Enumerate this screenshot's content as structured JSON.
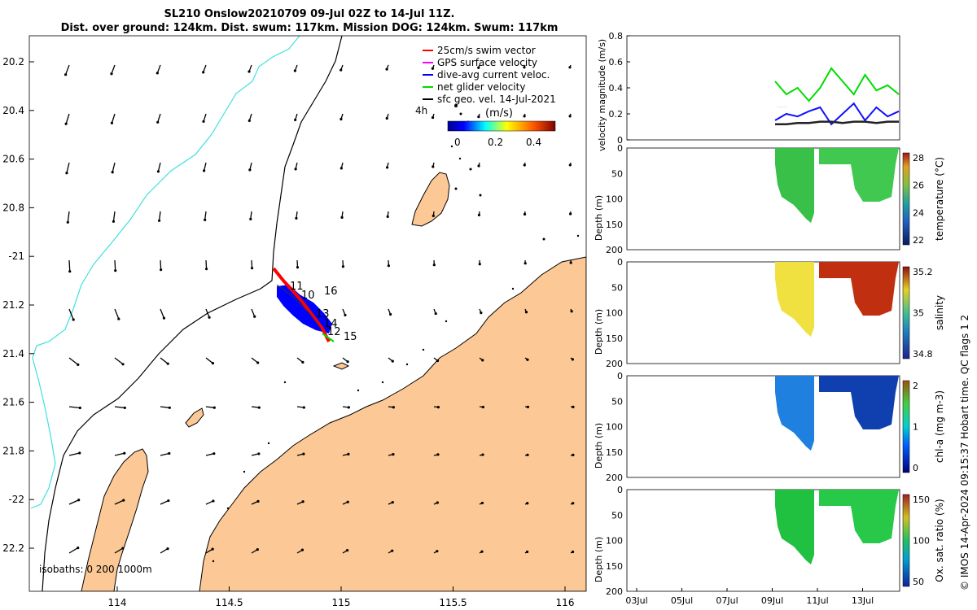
{
  "header": {
    "title_line1": "SL210 Onslow20210709 09-Jul 02Z to 14-Jul 11Z.",
    "title_line2": "Dist. over ground: 124km. Dist. swum: 117km. Mission DOG: 124km. Swum: 117km"
  },
  "map": {
    "legend": [
      {
        "label": "25cm/s swim vector",
        "color": "#ff0000"
      },
      {
        "label": "GPS surface velocity",
        "color": "#ff00ff"
      },
      {
        "label": "dive-avg current veloc.",
        "color": "#0000ff"
      },
      {
        "label": "net glider velocity",
        "color": "#00dd00"
      },
      {
        "label": "sfc geo. vel. 14-Jul-2021",
        "color": "#000000"
      }
    ],
    "label_4h": "4h",
    "colorbar_unit": "(m/s)",
    "colorbar_ticks": [
      "0",
      "0.2",
      "0.4"
    ],
    "isobaths_label": "isobaths: 0   200  1000m",
    "lat_ticks": [
      "20.2",
      "20.4",
      "20.6",
      "20.8",
      "-21",
      "21.2",
      "21.4",
      "21.6",
      "21.8",
      "-22",
      "22.2"
    ],
    "lon_ticks": [
      "114",
      "114.5",
      "115",
      "115.5",
      "116"
    ],
    "day_labels": [
      "11",
      "10",
      "16",
      "13",
      "14",
      "12",
      "15"
    ],
    "colors": {
      "land": "#fbc896",
      "isobath_200": "#000000",
      "isobath_1000": "#40e0e0"
    }
  },
  "panels": {
    "time_ticks": [
      "03Jul",
      "05Jul",
      "07Jul",
      "09Jul",
      "11Jul",
      "13Jul"
    ],
    "velocity": {
      "ylabel": "velocity magnitude (m/s)",
      "yticks": [
        "0",
        "0.2",
        "0.4",
        "0.6",
        "0.8"
      ]
    },
    "sections": [
      {
        "name": "temperature",
        "ylabel": "Depth (m)",
        "cbar_label": "temperature (°C)",
        "cbar_ticks": [
          "22",
          "24",
          "26",
          "28"
        ]
      },
      {
        "name": "salinity",
        "ylabel": "Depth (m)",
        "cbar_label": "salinity",
        "cbar_ticks": [
          "34.8",
          "35",
          "35.2"
        ]
      },
      {
        "name": "chla",
        "ylabel": "Depth (m)",
        "cbar_label": "chl-a (mg m-3)",
        "cbar_ticks": [
          "0",
          "1",
          "2"
        ]
      },
      {
        "name": "oxygen",
        "ylabel": "Depth (m)",
        "cbar_label": "Ox. sat. ratio (%)",
        "cbar_ticks": [
          "50",
          "100",
          "150"
        ]
      }
    ],
    "depth_ticks": [
      "0",
      "50",
      "100",
      "150",
      "200"
    ]
  },
  "footer_side": "© IMOS 14-Apr-2024 09:15:37 Hobart time. QC flags 1  2",
  "chart_data": {
    "type": "line",
    "title": "SL210 Onslow20210709 09-Jul 02Z to 14-Jul 11Z.",
    "xlabel": "",
    "ylabel": "velocity magnitude (m/s)",
    "ylim": [
      0,
      0.8
    ],
    "x": [
      "09Jul",
      "09.5Jul",
      "10Jul",
      "10.5Jul",
      "11Jul",
      "11.5Jul",
      "12Jul",
      "12.5Jul",
      "13Jul",
      "13.5Jul",
      "14Jul",
      "14.5Jul"
    ],
    "series": [
      {
        "name": "net glider velocity",
        "values": [
          0.45,
          0.35,
          0.4,
          0.3,
          0.4,
          0.55,
          0.45,
          0.35,
          0.5,
          0.38,
          0.42,
          0.35
        ]
      },
      {
        "name": "dive-avg current veloc.",
        "values": [
          0.15,
          0.2,
          0.18,
          0.22,
          0.25,
          0.12,
          0.2,
          0.28,
          0.15,
          0.25,
          0.18,
          0.22
        ]
      },
      {
        "name": "sfc geo. vel. 14-Jul-2021",
        "values": [
          0.12,
          0.12,
          0.13,
          0.13,
          0.14,
          0.14,
          0.13,
          0.14,
          0.14,
          0.13,
          0.14,
          0.14
        ]
      }
    ]
  }
}
